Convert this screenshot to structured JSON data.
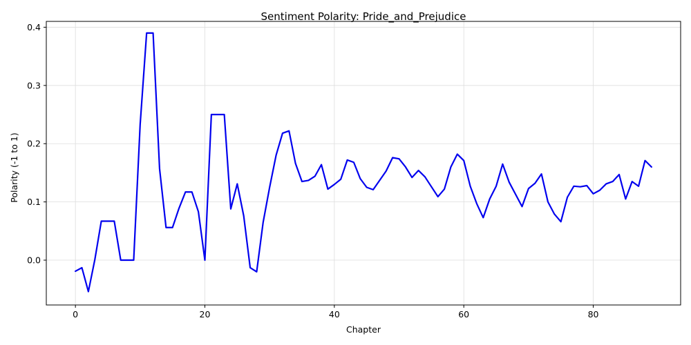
{
  "chart_data": {
    "type": "line",
    "title": "Sentiment Polarity: Pride_and_Prejudice",
    "xlabel": "Chapter",
    "ylabel": "Polarity (-1 to 1)",
    "xlim": [
      -4.5,
      93.5
    ],
    "ylim": [
      -0.077,
      0.41
    ],
    "xticks": [
      0,
      20,
      40,
      60,
      80
    ],
    "xtick_labels": [
      "0",
      "20",
      "40",
      "60",
      "80"
    ],
    "yticks": [
      0.0,
      0.1,
      0.2,
      0.3,
      0.4
    ],
    "ytick_labels": [
      "0.0",
      "0.1",
      "0.2",
      "0.3",
      "0.4"
    ],
    "grid": true,
    "series": [
      {
        "color": "#0000ee",
        "x": [
          0,
          1,
          2,
          3,
          4,
          5,
          6,
          7,
          8,
          9,
          10,
          11,
          12,
          13,
          14,
          15,
          16,
          17,
          18,
          19,
          20,
          21,
          22,
          23,
          24,
          25,
          26,
          27,
          28,
          29,
          30,
          31,
          32,
          33,
          34,
          35,
          36,
          37,
          38,
          39,
          40,
          41,
          42,
          43,
          44,
          45,
          46,
          47,
          48,
          49,
          50,
          51,
          52,
          53,
          54,
          55,
          56,
          57,
          58,
          59,
          60,
          61,
          62,
          63,
          64,
          65,
          66,
          67,
          68,
          69,
          70,
          71,
          72,
          73,
          74,
          75,
          76,
          77,
          78,
          79,
          80,
          81,
          82,
          83,
          84,
          85,
          86,
          87,
          88,
          89
        ],
        "y": [
          -0.019,
          -0.013,
          -0.054,
          0.001,
          0.067,
          0.067,
          0.067,
          0.0,
          0.0,
          0.0,
          0.233,
          0.39,
          0.39,
          0.157,
          0.056,
          0.056,
          0.089,
          0.117,
          0.117,
          0.083,
          0.0,
          0.25,
          0.25,
          0.25,
          0.088,
          0.131,
          0.076,
          -0.013,
          -0.02,
          0.065,
          0.125,
          0.18,
          0.218,
          0.222,
          0.166,
          0.135,
          0.137,
          0.144,
          0.164,
          0.122,
          0.13,
          0.139,
          0.172,
          0.168,
          0.14,
          0.125,
          0.121,
          0.137,
          0.153,
          0.176,
          0.174,
          0.16,
          0.142,
          0.154,
          0.143,
          0.126,
          0.109,
          0.122,
          0.16,
          0.182,
          0.171,
          0.127,
          0.097,
          0.073,
          0.105,
          0.127,
          0.165,
          0.134,
          0.113,
          0.092,
          0.123,
          0.132,
          0.148,
          0.1,
          0.079,
          0.066,
          0.108,
          0.127,
          0.126,
          0.128,
          0.114,
          0.12,
          0.131,
          0.135,
          0.147,
          0.105,
          0.135,
          0.127,
          0.171,
          0.16
        ]
      }
    ]
  }
}
